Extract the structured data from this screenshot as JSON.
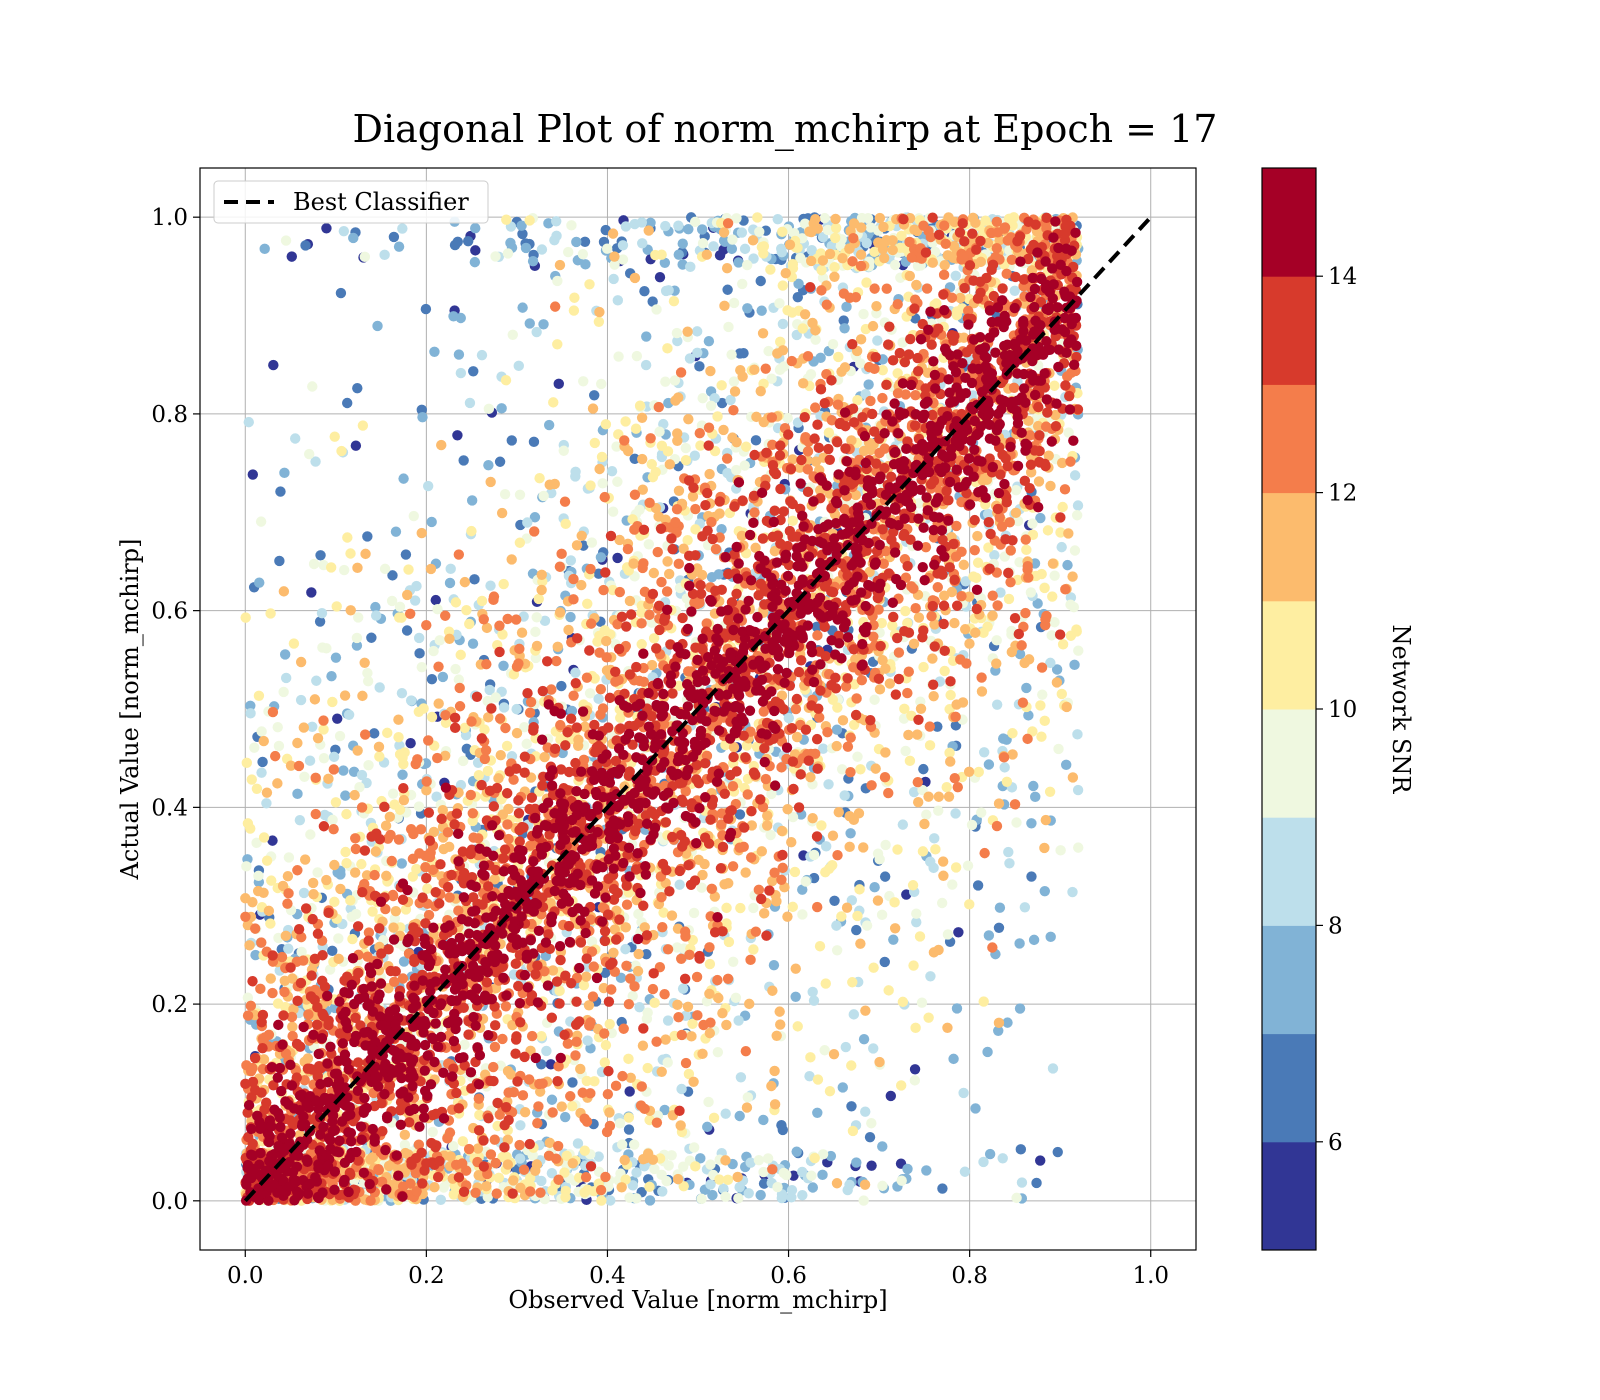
{
  "chart_data": {
    "type": "scatter",
    "title": "Diagonal Plot of norm_mchirp at Epoch = 17",
    "xlabel": "Observed Value [norm_mchirp]",
    "ylabel": "Actual Value [norm_mchirp]",
    "xlim": [
      -0.05,
      1.05
    ],
    "ylim": [
      -0.05,
      1.05
    ],
    "xticks": [
      0.0,
      0.2,
      0.4,
      0.6,
      0.8,
      1.0
    ],
    "yticks": [
      0.0,
      0.2,
      0.4,
      0.6,
      0.8,
      1.0
    ],
    "xtick_labels": [
      "0.0",
      "0.2",
      "0.4",
      "0.6",
      "0.8",
      "1.0"
    ],
    "ytick_labels": [
      "0.0",
      "0.2",
      "0.4",
      "0.6",
      "0.8",
      "1.0"
    ],
    "grid": true,
    "legend": {
      "position": "upper-left",
      "entries": [
        {
          "label": "Best Classifier",
          "style": "dashed",
          "color": "#000000"
        }
      ]
    },
    "reference_line": {
      "name": "Best Classifier",
      "x": [
        0.0,
        1.0
      ],
      "y": [
        0.0,
        1.0
      ],
      "style": "dashed",
      "color": "#000000"
    },
    "colorbar": {
      "label": "Network SNR",
      "min": 5,
      "max": 15,
      "ticks": [
        6,
        8,
        10,
        12,
        14
      ],
      "tick_labels": [
        "6",
        "8",
        "10",
        "12",
        "14"
      ],
      "boundaries": [
        5,
        6,
        7,
        8,
        9,
        10,
        11,
        12,
        13,
        14,
        15
      ],
      "colors": [
        "#313695",
        "#4a7ab7",
        "#81b3d6",
        "#bddfeb",
        "#eff8e0",
        "#feeea1",
        "#fcbb6d",
        "#f47d4b",
        "#d73a2c",
        "#a50026"
      ]
    },
    "scatter": {
      "color_by": "Network SNR",
      "point_count_approx": 50000,
      "bands": [
        {
          "snr_range": [
            14,
            15
          ],
          "color": "#a50026",
          "spread_about_diagonal": 0.08
        },
        {
          "snr_range": [
            12,
            14
          ],
          "color": "#f47d4b",
          "spread_about_diagonal": 0.12
        },
        {
          "snr_range": [
            10,
            12
          ],
          "color": "#feeea1",
          "spread_about_diagonal": 0.16
        },
        {
          "snr_range": [
            8,
            10
          ],
          "color": "#bddfeb",
          "spread_about_diagonal": 0.22
        },
        {
          "snr_range": [
            5,
            8
          ],
          "color": "#313695",
          "spread_about_diagonal": 0.34
        }
      ],
      "observed_range": [
        0.0,
        0.92
      ],
      "actual_range": [
        0.0,
        1.0
      ]
    }
  }
}
